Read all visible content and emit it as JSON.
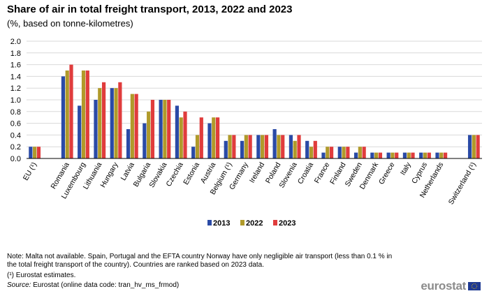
{
  "title": "Share of air in total freight transport, 2013, 2022 and 2023",
  "subtitle": "(%, based on tonne-kilometres)",
  "notes": {
    "note1": "Note: Malta not available. Spain, Portugal and the EFTA country Norway have only negligible air transport (less than 0.1 % in the total freight transport of the country). Countries are ranked based on 2023 data.",
    "note2": "(¹) Eurostat estimates.",
    "source_label": "Source:",
    "source_text": " Eurostat (online data code: tran_hv_ms_frmod)"
  },
  "logo": {
    "text": "eurostat",
    "icon": "eu-flag-icon"
  },
  "colors": {
    "s2013": "#2a4aa6",
    "s2022": "#b09a2a",
    "s2023": "#e03c3c",
    "grid": "#d9d9d9",
    "axis": "#000000"
  },
  "chart_data": {
    "type": "bar",
    "title": "Share of air in total freight transport, 2013, 2022 and 2023",
    "xlabel": "",
    "ylabel": "",
    "ylim": [
      0,
      2.0
    ],
    "yticks": [
      "0.0",
      "0.2",
      "0.4",
      "0.6",
      "0.8",
      "1.0",
      "1.2",
      "1.4",
      "1.6",
      "1.8",
      "2.0"
    ],
    "grid": true,
    "legend_position": "bottom-center",
    "categories": [
      "EU (¹)",
      "Romania",
      "Luxembourg",
      "Lithuania",
      "Hungary",
      "Latvia",
      "Bulgaria",
      "Slovakia",
      "Czechia",
      "Estonia",
      "Austria",
      "Belgium (¹)",
      "Germany",
      "Ireland",
      "Poland",
      "Slovenia",
      "Croatia",
      "France",
      "Finland",
      "Sweden",
      "Denmark",
      "Greece",
      "Italy",
      "Cyprus",
      "Netherlands",
      "Switzerland (¹)"
    ],
    "series": [
      {
        "name": "2013",
        "values": [
          0.2,
          1.4,
          0.9,
          1.0,
          1.2,
          0.5,
          0.6,
          1.0,
          0.9,
          0.2,
          0.6,
          0.3,
          0.3,
          0.4,
          0.5,
          0.4,
          0.3,
          0.1,
          0.2,
          0.1,
          0.1,
          0.1,
          0.1,
          0.1,
          0.1,
          0.4
        ]
      },
      {
        "name": "2022",
        "values": [
          0.2,
          1.5,
          1.5,
          1.2,
          1.2,
          1.1,
          0.8,
          1.0,
          0.7,
          0.4,
          0.7,
          0.4,
          0.4,
          0.4,
          0.4,
          0.3,
          0.2,
          0.2,
          0.2,
          0.2,
          0.1,
          0.1,
          0.1,
          0.1,
          0.1,
          0.4
        ]
      },
      {
        "name": "2023",
        "values": [
          0.2,
          1.6,
          1.5,
          1.3,
          1.3,
          1.1,
          1.0,
          1.0,
          0.8,
          0.7,
          0.7,
          0.4,
          0.4,
          0.4,
          0.4,
          0.4,
          0.3,
          0.2,
          0.2,
          0.2,
          0.1,
          0.1,
          0.1,
          0.1,
          0.1,
          0.4
        ]
      }
    ]
  }
}
